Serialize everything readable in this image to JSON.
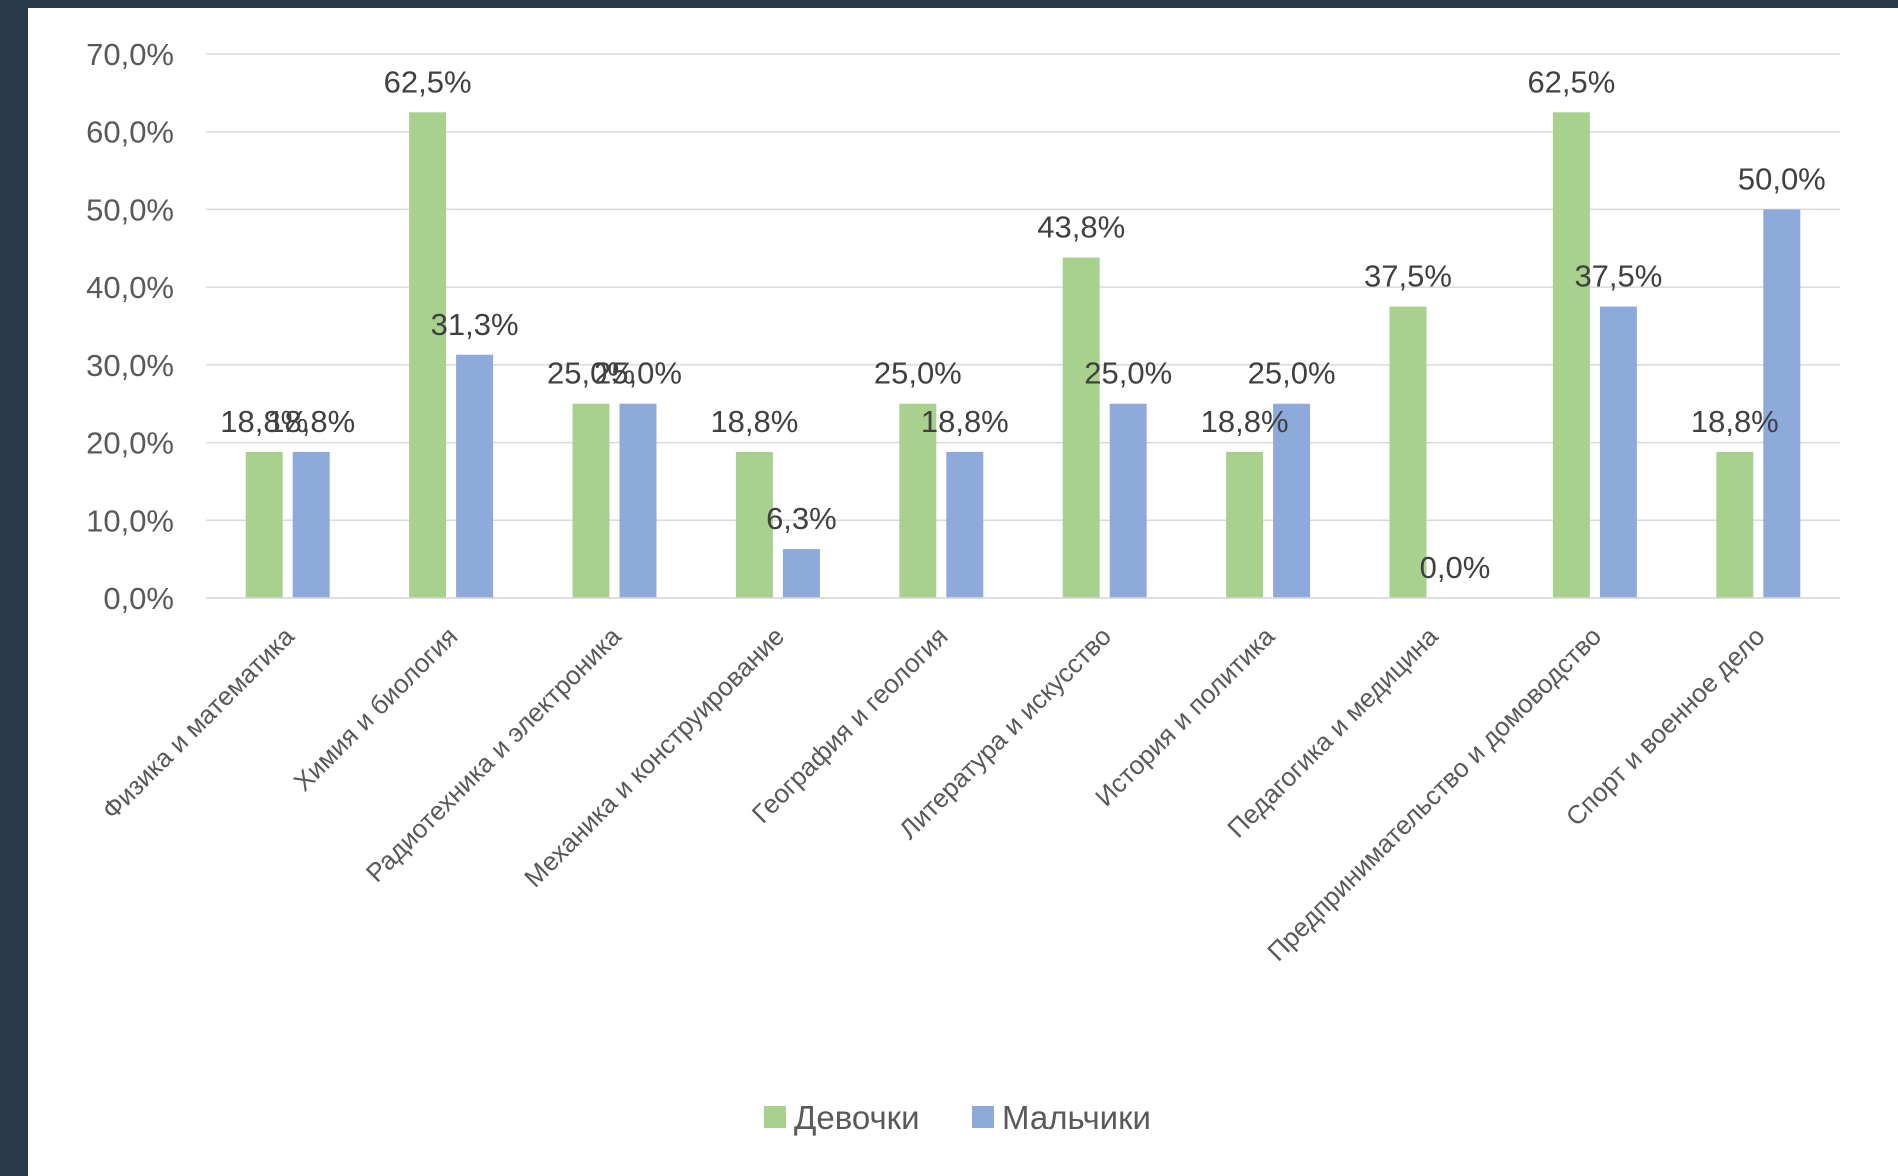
{
  "chart_data": {
    "type": "bar",
    "categories": [
      "Физика и математика",
      "Химия и биология",
      "Радиотехника и электроника",
      "Механика и конструирование",
      "География и геология",
      "Литература и искусство",
      "История и политика",
      "Педагогика и медицина",
      "Предпринимательство и домоводство",
      "Спорт и военное дело"
    ],
    "series": [
      {
        "name": "Девочки",
        "color": "#a9d18e",
        "values": [
          18.8,
          62.5,
          25.0,
          18.8,
          25.0,
          43.8,
          18.8,
          37.5,
          62.5,
          18.8
        ],
        "labels": [
          "18,8%",
          "62,5%",
          "25,0%",
          "18,8%",
          "25,0%",
          "43,8%",
          "18,8%",
          "37,5%",
          "62,5%",
          "18,8%"
        ]
      },
      {
        "name": "Мальчики",
        "color": "#8eaadb",
        "values": [
          18.8,
          31.3,
          25.0,
          6.3,
          18.8,
          25.0,
          25.0,
          0.0,
          37.5,
          50.0
        ],
        "labels": [
          "18,8%",
          "31,3%",
          "25,0%",
          "6,3%",
          "18,8%",
          "25,0%",
          "25,0%",
          "0,0%",
          "37,5%",
          "50,0%"
        ]
      }
    ],
    "yticks": [
      "0,0%",
      "10,0%",
      "20,0%",
      "30,0%",
      "40,0%",
      "50,0%",
      "60,0%",
      "70,0%"
    ],
    "ylim": [
      0,
      70
    ],
    "title": "",
    "xlabel": "",
    "ylabel": "",
    "grid": true,
    "legend_position": "bottom"
  }
}
